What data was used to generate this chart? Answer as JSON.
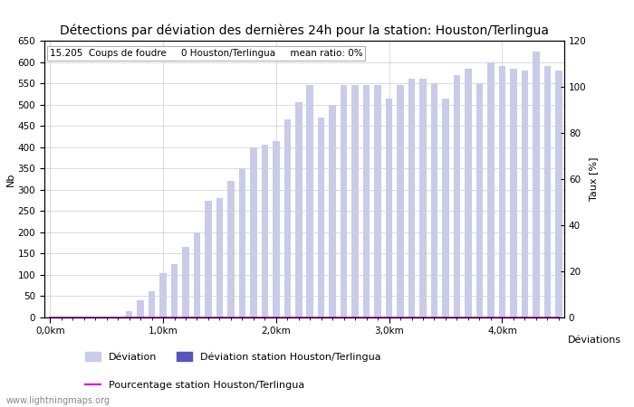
{
  "title": "Détections par déviation des dernières 24h pour la station: Houston/Terlingua",
  "subtitle": "15.205  Coups de foudre     0 Houston/Terlingua     mean ratio: 0%",
  "xlabel": "Déviations",
  "ylabel_left": "Nb",
  "ylabel_right": "Taux [%]",
  "watermark": "www.lightningmaps.org",
  "legend_deviation": "Déviation",
  "legend_station": "Déviation station Houston/Terlingua",
  "legend_percent": "Pourcentage station Houston/Terlingua",
  "bar_color_light": "#c8cce8",
  "bar_color_dark": "#5555bb",
  "line_color": "#dd00dd",
  "ylim_left": [
    0,
    650
  ],
  "ylim_right": [
    0,
    120
  ],
  "x_tick_labels": [
    "0,0km",
    "1,0km",
    "2,0km",
    "3,0km",
    "4,0km"
  ],
  "x_tick_positions": [
    0,
    10,
    20,
    30,
    40
  ],
  "num_bars": 46,
  "bar_values": [
    0,
    0,
    0,
    0,
    0,
    0,
    0,
    15,
    40,
    62,
    105,
    125,
    165,
    200,
    275,
    280,
    320,
    350,
    400,
    405,
    415,
    465,
    505,
    545,
    470,
    500,
    545,
    545,
    545,
    545,
    515,
    545,
    560,
    560,
    550,
    515,
    570,
    585,
    550,
    600,
    590,
    585,
    580,
    625,
    590,
    580
  ],
  "station_bar_values": [
    0,
    0,
    0,
    0,
    0,
    0,
    0,
    0,
    0,
    0,
    0,
    0,
    0,
    0,
    0,
    0,
    0,
    0,
    0,
    0,
    0,
    0,
    0,
    0,
    0,
    0,
    0,
    0,
    0,
    0,
    0,
    0,
    0,
    0,
    0,
    0,
    0,
    0,
    0,
    0,
    0,
    0,
    0,
    0,
    0,
    0
  ],
  "percentage_values": [
    0,
    0,
    0,
    0,
    0,
    0,
    0,
    0,
    0,
    0,
    0,
    0,
    0,
    0,
    0,
    0,
    0,
    0,
    0,
    0,
    0,
    0,
    0,
    0,
    0,
    0,
    0,
    0,
    0,
    0,
    0,
    0,
    0,
    0,
    0,
    0,
    0,
    0,
    0,
    0,
    0,
    0,
    0,
    0,
    0,
    0
  ],
  "background_color": "#ffffff",
  "grid_color": "#cccccc",
  "title_fontsize": 10,
  "subtitle_fontsize": 7.5,
  "axis_fontsize": 8,
  "tick_fontsize": 7.5
}
